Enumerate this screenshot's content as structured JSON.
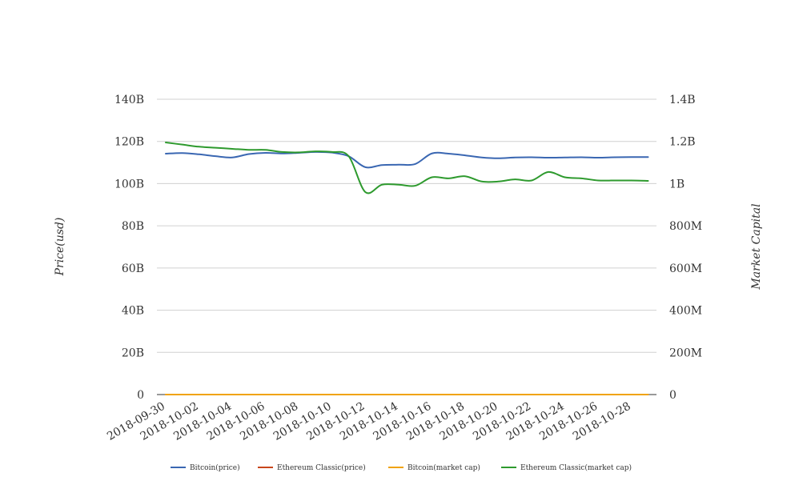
{
  "chart_data": {
    "type": "line",
    "title": "",
    "xlabel": "",
    "ylabel_left": "Price(usd)",
    "ylabel_right": "Market Capital",
    "grid": true,
    "legend_position": "bottom",
    "x_tick_labels": [
      "2018-09-30",
      "2018-10-02",
      "2018-10-04",
      "2018-10-06",
      "2018-10-08",
      "2018-10-10",
      "2018-10-12",
      "2018-10-14",
      "2018-10-16",
      "2018-10-18",
      "2018-10-20",
      "2018-10-22",
      "2018-10-24",
      "2018-10-26",
      "2018-10-28"
    ],
    "y_left_ticks": [
      "0",
      "20B",
      "40B",
      "60B",
      "80B",
      "100B",
      "120B",
      "140B"
    ],
    "y_right_ticks": [
      "0",
      "200M",
      "400M",
      "600M",
      "800M",
      "1B",
      "1.2B",
      "1.4B"
    ],
    "y_left_range": [
      0,
      140000000000
    ],
    "y_right_range": [
      0,
      1400000000
    ],
    "x": [
      "2018-09-30",
      "2018-10-01",
      "2018-10-02",
      "2018-10-03",
      "2018-10-04",
      "2018-10-05",
      "2018-10-06",
      "2018-10-07",
      "2018-10-08",
      "2018-10-09",
      "2018-10-10",
      "2018-10-11",
      "2018-10-12",
      "2018-10-13",
      "2018-10-14",
      "2018-10-15",
      "2018-10-16",
      "2018-10-17",
      "2018-10-18",
      "2018-10-19",
      "2018-10-20",
      "2018-10-21",
      "2018-10-22",
      "2018-10-23",
      "2018-10-24",
      "2018-10-25",
      "2018-10-26",
      "2018-10-27",
      "2018-10-28",
      "2018-10-29"
    ],
    "series": [
      {
        "name": "Bitcoin(price)",
        "axis": "left",
        "color": "#3a67b2",
        "values": [
          114.2,
          114.5,
          113.9,
          113.0,
          112.4,
          114.0,
          114.6,
          114.3,
          114.6,
          115.0,
          114.7,
          113.0,
          107.8,
          108.8,
          109.0,
          109.3,
          114.3,
          114.2,
          113.4,
          112.4,
          112.0,
          112.4,
          112.5,
          112.3,
          112.4,
          112.5,
          112.3,
          112.5,
          112.6,
          112.6
        ]
      },
      {
        "name": "Ethereum Classic(price)",
        "axis": "left",
        "color": "#c8461c",
        "values": [
          0,
          0,
          0,
          0,
          0,
          0,
          0,
          0,
          0,
          0,
          0,
          0,
          0,
          0,
          0,
          0,
          0,
          0,
          0,
          0,
          0,
          0,
          0,
          0,
          0,
          0,
          0,
          0,
          0,
          0
        ]
      },
      {
        "name": "Bitcoin(market cap)",
        "axis": "right",
        "color": "#f0a30a",
        "values": [
          0,
          0,
          0,
          0,
          0,
          0,
          0,
          0,
          0,
          0,
          0,
          0,
          0,
          0,
          0,
          0,
          0,
          0,
          0,
          0,
          0,
          0,
          0,
          0,
          0,
          0,
          0,
          0,
          0,
          0
        ]
      },
      {
        "name": "Ethereum Classic(market cap)",
        "axis": "right",
        "color": "#2e9a2e",
        "values": [
          1.195,
          1.185,
          1.175,
          1.17,
          1.165,
          1.16,
          1.16,
          1.15,
          1.148,
          1.153,
          1.15,
          1.13,
          0.96,
          0.995,
          0.995,
          0.99,
          1.03,
          1.025,
          1.035,
          1.01,
          1.01,
          1.02,
          1.015,
          1.055,
          1.03,
          1.025,
          1.015,
          1.015,
          1.015,
          1.013
        ]
      }
    ]
  }
}
